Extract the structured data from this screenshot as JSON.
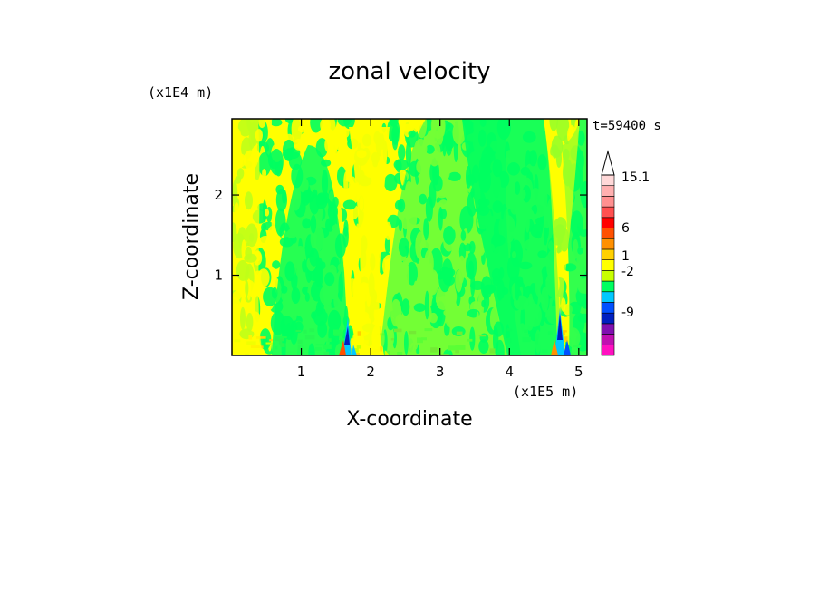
{
  "chart_data": {
    "type": "heatmap",
    "title": "zonal velocity",
    "xlabel": "X-coordinate",
    "ylabel": "Z-coordinate",
    "x_unit": "(x1E5 m)",
    "y_unit": "(x1E4 m)",
    "time_label": "t=59400 s",
    "xlim": [
      0,
      5.12
    ],
    "ylim": [
      0,
      2.95
    ],
    "x_ticks": [
      1,
      2,
      3,
      4,
      5
    ],
    "y_ticks": [
      1,
      2
    ],
    "colorbar": {
      "labels": [
        "15.1",
        "6",
        "1",
        "-2",
        "-9"
      ],
      "colors": [
        "#ff10c0",
        "#c010b0",
        "#8010b0",
        "#0020c0",
        "#0050ff",
        "#00c8ff",
        "#00ff60",
        "#c8ff00",
        "#ffff00",
        "#ffd000",
        "#ff9000",
        "#ff5000",
        "#ff0000",
        "#ff5050",
        "#ff9090",
        "#ffb0b0",
        "#ffd8d8"
      ]
    },
    "field": {
      "dominant_values": [
        "yellow",
        "green"
      ],
      "green_plumes_x": [
        1.2,
        3.3,
        4.4
      ],
      "yellow_bands_x": [
        0.3,
        2.0,
        4.8
      ],
      "jets_x": [
        1.65,
        4.75
      ]
    }
  }
}
